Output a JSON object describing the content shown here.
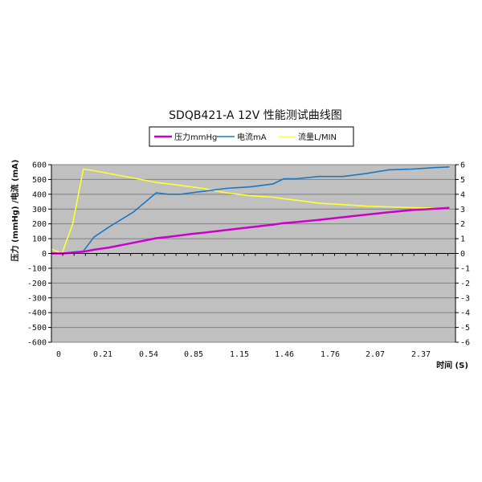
{
  "chart_data": {
    "type": "line",
    "title": "SDQB421-A 12V 性能测试曲线图",
    "xlabel": "时间 (S)",
    "ylabel": "压力 (mmHg) /电流 (mA)",
    "y2label": "",
    "x_tick_labels": [
      "0",
      "0.21",
      "0.54",
      "0.85",
      "1.15",
      "1.46",
      "1.76",
      "2.07",
      "2.37"
    ],
    "y_ticks_left": [
      "600",
      "500",
      "400",
      "300",
      "200",
      "100",
      "0",
      "-100",
      "-200",
      "-300",
      "-400",
      "-500",
      "-600"
    ],
    "y_ticks_right": [
      "6",
      "5",
      "4",
      "3",
      "2",
      "1",
      "0",
      "-1",
      "-2",
      "-3",
      "-4",
      "-5",
      "-6"
    ],
    "ylim_left": [
      -600,
      600
    ],
    "ylim_right": [
      -6,
      6
    ],
    "grid": true,
    "legend_position": "top",
    "x": [
      0,
      0.07,
      0.14,
      0.21,
      0.28,
      0.38,
      0.54,
      0.69,
      0.77,
      0.85,
      0.92,
      1.0,
      1.15,
      1.31,
      1.46,
      1.53,
      1.61,
      1.76,
      1.92,
      2.07,
      2.22,
      2.37,
      2.45,
      2.52,
      2.62
    ],
    "series": [
      {
        "name": "压力mmHg",
        "axis": "left",
        "color": "#cc00cc",
        "values": [
          0,
          0,
          5,
          12,
          25,
          40,
          72,
          103,
          112,
          122,
          132,
          140,
          158,
          177,
          195,
          205,
          212,
          227,
          245,
          262,
          278,
          293,
          297,
          302,
          308
        ]
      },
      {
        "name": "电流mA",
        "axis": "left",
        "color": "#1a78c2",
        "values": [
          0,
          0,
          10,
          15,
          110,
          180,
          280,
          410,
          400,
          400,
          410,
          420,
          440,
          450,
          470,
          505,
          505,
          520,
          520,
          540,
          565,
          570,
          575,
          580,
          585
        ]
      },
      {
        "name": "流量L/MIN",
        "axis": "right",
        "color": "#ffff33",
        "values": [
          0.3,
          0.0,
          2.0,
          5.7,
          5.6,
          5.4,
          5.1,
          4.8,
          4.7,
          4.6,
          4.5,
          4.4,
          4.1,
          3.9,
          3.8,
          3.7,
          3.6,
          3.4,
          3.3,
          3.2,
          3.15,
          3.1,
          3.08,
          3.06,
          3.05
        ]
      }
    ]
  }
}
